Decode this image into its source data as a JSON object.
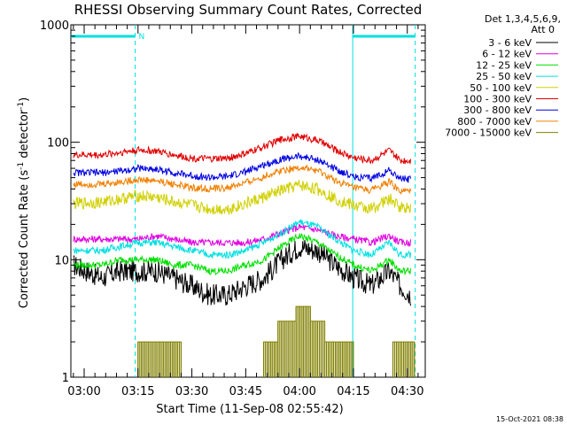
{
  "chart_data": {
    "type": "line",
    "title": "RHESSI Observing Summary Count Rates, Corrected",
    "xlabel": "Start Time (11-Sep-08 02:55:42)",
    "ylabel_main": "Corrected Count Rate (s",
    "ylabel_sup1": "-1",
    "ylabel_mid": " detector",
    "ylabel_sup2": "-1",
    "ylabel_end": ")",
    "yscale": "log",
    "ylim": [
      1,
      1000
    ],
    "xlim_minutes": [
      -3.7,
      95
    ],
    "x_tick_labels": [
      "03:00",
      "03:15",
      "03:30",
      "03:45",
      "04:00",
      "04:15",
      "04:30"
    ],
    "x_tick_minutes": [
      0,
      15,
      30,
      45,
      60,
      75,
      90
    ],
    "y_tick_labels": [
      "1",
      "10",
      "100",
      "1000"
    ],
    "y_tick_values": [
      1,
      10,
      100,
      1000
    ],
    "legend_header": [
      "Det 1,3,4,5,6,9,",
      "Att 0"
    ],
    "series": [
      {
        "name": "3 - 6 keV",
        "color": "#000000",
        "x": [
          -3,
          5,
          10,
          15,
          20,
          25,
          30,
          35,
          40,
          45,
          50,
          55,
          60,
          65,
          70,
          75,
          80,
          85,
          88,
          91
        ],
        "values": [
          9,
          7,
          8,
          8,
          8,
          7,
          6,
          5,
          5,
          6,
          7,
          10,
          13,
          12,
          9,
          7,
          6,
          8,
          6,
          5
        ]
      },
      {
        "name": "6 - 12 keV",
        "color": "#e000e0",
        "x": [
          -3,
          5,
          10,
          15,
          20,
          25,
          30,
          35,
          40,
          45,
          50,
          55,
          60,
          65,
          70,
          75,
          80,
          85,
          88,
          91
        ],
        "values": [
          15,
          15,
          15,
          15,
          16,
          15,
          14,
          14,
          14,
          14,
          15,
          17,
          19,
          18,
          16,
          15,
          14,
          16,
          14,
          14
        ]
      },
      {
        "name": "12 - 25 keV",
        "color": "#00e000",
        "x": [
          -3,
          5,
          10,
          15,
          20,
          25,
          30,
          35,
          40,
          45,
          50,
          55,
          60,
          65,
          70,
          75,
          80,
          85,
          88,
          91
        ],
        "values": [
          9,
          9,
          10,
          10,
          10,
          9,
          9,
          8,
          8,
          9,
          10,
          13,
          16,
          14,
          11,
          9,
          8,
          10,
          8,
          8
        ]
      },
      {
        "name": "25 - 50 keV",
        "color": "#00e0e0",
        "x": [
          -3,
          5,
          10,
          15,
          20,
          25,
          30,
          35,
          40,
          45,
          50,
          55,
          60,
          65,
          70,
          75,
          80,
          85,
          88,
          91
        ],
        "values": [
          12,
          12,
          13,
          14,
          14,
          13,
          12,
          11,
          11,
          12,
          14,
          17,
          21,
          19,
          15,
          12,
          11,
          14,
          11,
          11
        ]
      },
      {
        "name": "50 - 100 keV",
        "color": "#d0d000",
        "x": [
          -3,
          5,
          10,
          15,
          20,
          25,
          30,
          35,
          40,
          45,
          50,
          55,
          60,
          65,
          70,
          75,
          80,
          85,
          88,
          91
        ],
        "values": [
          30,
          31,
          33,
          35,
          34,
          31,
          29,
          27,
          27,
          30,
          34,
          39,
          43,
          40,
          33,
          29,
          27,
          33,
          28,
          28
        ]
      },
      {
        "name": "100 - 300 keV",
        "color": "#e00000",
        "x": [
          -3,
          5,
          10,
          15,
          20,
          25,
          30,
          35,
          40,
          45,
          50,
          55,
          60,
          65,
          70,
          75,
          80,
          85,
          88,
          91
        ],
        "values": [
          78,
          78,
          82,
          86,
          84,
          78,
          73,
          72,
          73,
          80,
          92,
          106,
          113,
          104,
          86,
          74,
          70,
          85,
          70,
          70
        ]
      },
      {
        "name": "300 - 800 keV",
        "color": "#0000e0",
        "x": [
          -3,
          5,
          10,
          15,
          20,
          25,
          30,
          35,
          40,
          45,
          50,
          55,
          60,
          65,
          70,
          75,
          80,
          85,
          88,
          91
        ],
        "values": [
          55,
          55,
          57,
          60,
          59,
          55,
          52,
          50,
          51,
          56,
          64,
          72,
          76,
          71,
          59,
          51,
          49,
          58,
          49,
          48
        ]
      },
      {
        "name": "800 - 7000 keV",
        "color": "#f08000",
        "x": [
          -3,
          5,
          10,
          15,
          20,
          25,
          30,
          35,
          40,
          45,
          50,
          55,
          60,
          65,
          70,
          75,
          80,
          85,
          88,
          91
        ],
        "values": [
          44,
          44,
          46,
          48,
          47,
          44,
          41,
          40,
          41,
          45,
          51,
          58,
          61,
          57,
          47,
          41,
          39,
          46,
          38,
          38
        ]
      },
      {
        "name": "7000 - 15000 keV",
        "color": "#808000",
        "x": [
          15,
          16,
          17,
          18,
          19,
          20,
          21,
          22,
          23,
          24,
          25,
          26,
          50,
          51,
          52,
          53,
          54,
          55,
          56,
          57,
          58,
          59,
          60,
          61,
          62,
          63,
          64,
          65,
          66,
          67,
          68,
          69,
          70,
          71,
          72,
          73,
          74,
          86,
          87,
          88,
          89,
          90,
          91
        ],
        "values": [
          2,
          2,
          2,
          2,
          2,
          2,
          2,
          2,
          2,
          2,
          2,
          2,
          2,
          2,
          2,
          2,
          3,
          3,
          3,
          3,
          3,
          4,
          4,
          4,
          4,
          3,
          3,
          3,
          3,
          2,
          2,
          2,
          2,
          2,
          2,
          2,
          2,
          2,
          2,
          2,
          2,
          2,
          2
        ]
      }
    ],
    "intervals": {
      "color": "#00e0e0",
      "top_bars_minutes": [
        [
          -3.7,
          14.2
        ],
        [
          74.8,
          92.2
        ]
      ],
      "top_bar_label": "N",
      "solid_lines_minutes": [
        74.8
      ],
      "dashed_lines_minutes": [
        14.2,
        92.2
      ]
    }
  },
  "footer": {
    "timestamp": "15-Oct-2021 08:38"
  }
}
